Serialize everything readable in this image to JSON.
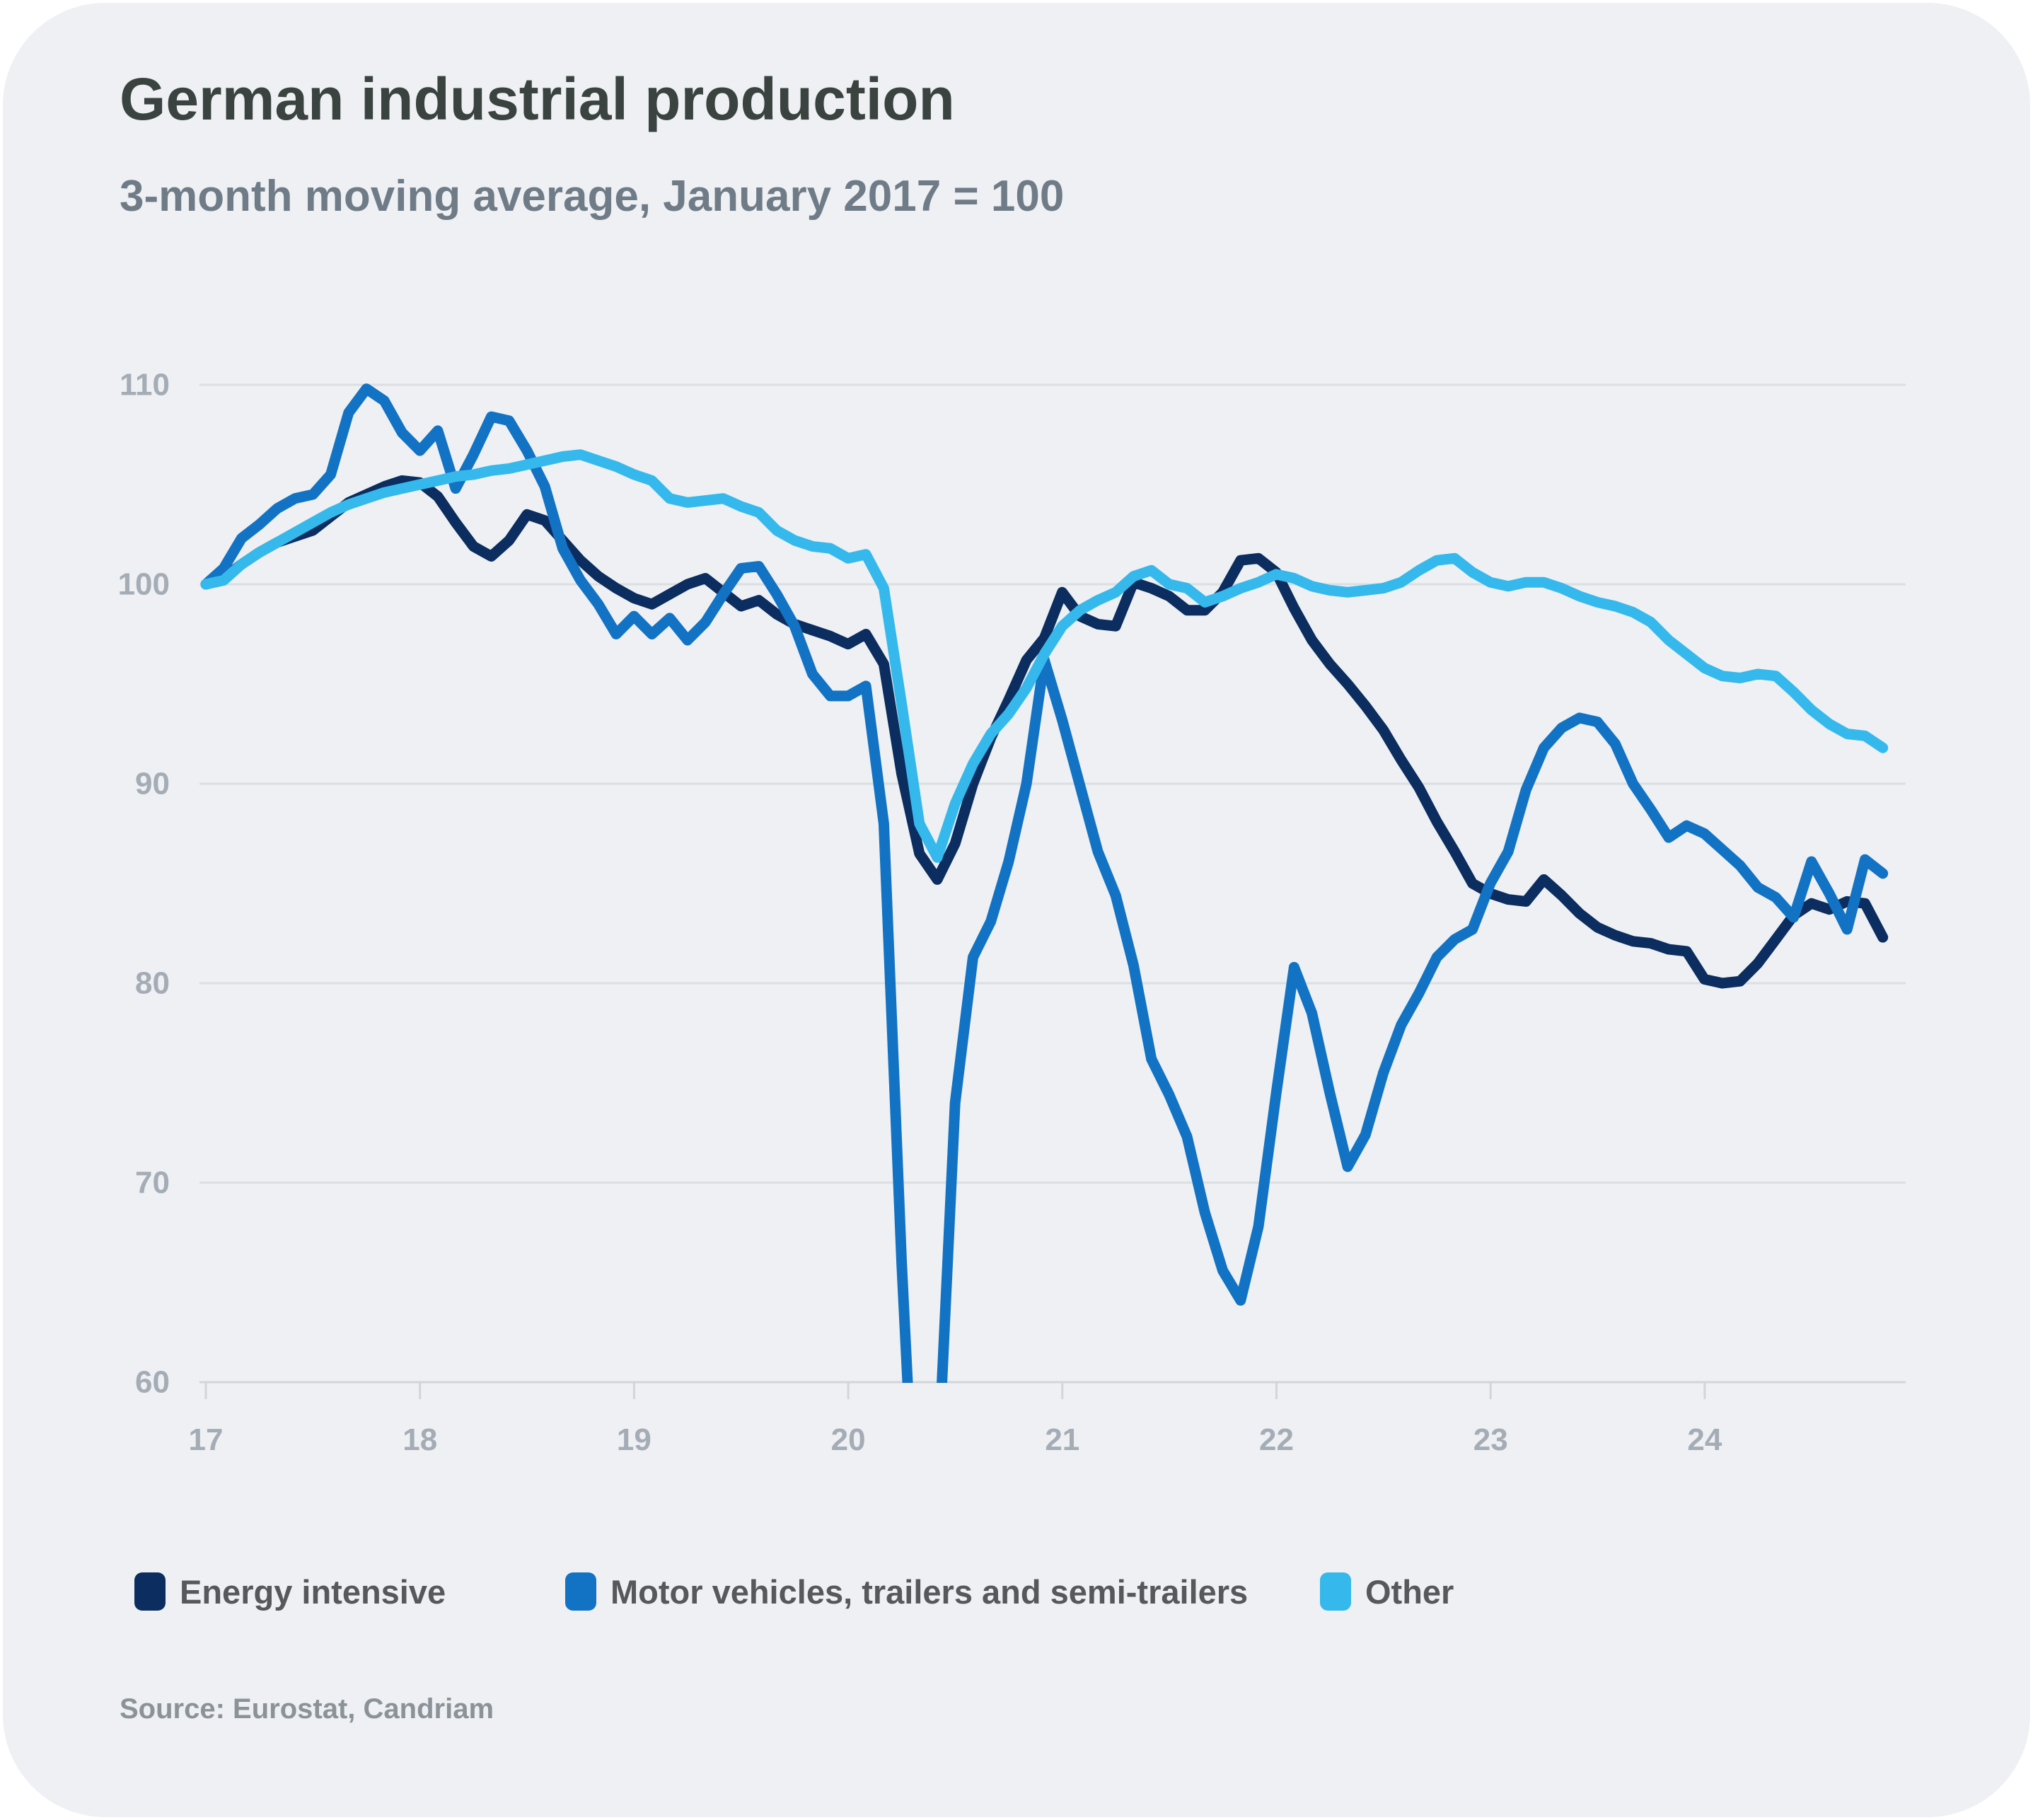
{
  "title": "German industrial production",
  "subtitle": "3-month moving average, January 2017 = 100",
  "source": "Source: Eurostat, Candriam",
  "colors": {
    "card_bg": "#eef0f3",
    "title_text": "#3a433f",
    "subtitle_text": "#6f7c88",
    "tick_text": "#a4acb5",
    "gridline": "#dcdfe2",
    "axis_line": "#d2d6d9",
    "legend_text": "#56585b",
    "source_text": "#8b9298"
  },
  "legend": {
    "items": [
      {
        "label": "Energy intensive",
        "color": "#0b2d5f"
      },
      {
        "label": "Motor vehicles, trailers and semi-trailers",
        "color": "#1273c4"
      },
      {
        "label": "Other",
        "color": "#35b9ec"
      }
    ]
  },
  "chart_data": {
    "type": "line",
    "title": "German industrial production",
    "subtitle": "3-month moving average, January 2017 = 100",
    "frequency": "monthly",
    "x_start": "2017-01",
    "x_end": "2024-11",
    "index_base": "January 2017 = 100",
    "ylim": [
      60,
      110
    ],
    "yticks": [
      110,
      100,
      90,
      80,
      70,
      60
    ],
    "xticks": [
      "17",
      "18",
      "19",
      "20",
      "21",
      "22",
      "23",
      "24"
    ],
    "grid": "horizontal",
    "legend_position": "bottom",
    "series": [
      {
        "name": "Energy intensive",
        "color": "#0b2d5f",
        "values": [
          100.0,
          100.3,
          101.0,
          101.6,
          102.1,
          102.4,
          102.7,
          103.4,
          104.1,
          104.5,
          104.9,
          105.2,
          105.1,
          104.4,
          103.1,
          101.9,
          101.4,
          102.2,
          103.5,
          103.2,
          102.2,
          101.2,
          100.4,
          99.8,
          99.3,
          99.0,
          99.5,
          100.0,
          100.3,
          99.6,
          98.9,
          99.2,
          98.5,
          98.0,
          97.7,
          97.4,
          97.0,
          97.5,
          96.0,
          90.5,
          86.5,
          85.2,
          87.0,
          90.0,
          92.3,
          94.2,
          96.2,
          97.3,
          99.6,
          98.4,
          98.0,
          97.9,
          100.1,
          99.8,
          99.4,
          98.7,
          98.7,
          99.6,
          101.2,
          101.3,
          100.6,
          98.8,
          97.2,
          96.0,
          95.0,
          93.9,
          92.7,
          91.2,
          89.8,
          88.1,
          86.6,
          85.0,
          84.5,
          84.2,
          84.1,
          85.2,
          84.4,
          83.5,
          82.8,
          82.4,
          82.1,
          82.0,
          81.7,
          81.6,
          80.2,
          80.0,
          80.1,
          81.0,
          82.2,
          83.4,
          84.0,
          83.7,
          84.1,
          84.0,
          82.3
        ]
      },
      {
        "name": "Motor vehicles, trailers and semi-trailers",
        "color": "#1273c4",
        "values": [
          100.0,
          100.8,
          102.3,
          103.0,
          103.8,
          104.3,
          104.5,
          105.5,
          108.6,
          109.8,
          109.2,
          107.6,
          106.7,
          107.7,
          104.8,
          106.5,
          108.4,
          108.2,
          106.7,
          104.9,
          101.8,
          100.2,
          99.0,
          97.5,
          98.4,
          97.5,
          98.3,
          97.2,
          98.1,
          99.5,
          100.8,
          100.9,
          99.5,
          97.9,
          95.5,
          94.4,
          94.4,
          94.9,
          88.0,
          66.0,
          48.0,
          55.0,
          74.0,
          81.3,
          83.1,
          86.1,
          90.0,
          96.2,
          93.2,
          89.9,
          86.6,
          84.4,
          80.9,
          76.2,
          74.4,
          72.3,
          68.5,
          65.6,
          64.1,
          67.8,
          74.5,
          80.8,
          78.5,
          74.5,
          70.8,
          72.4,
          75.5,
          77.9,
          79.5,
          81.3,
          82.2,
          82.7,
          85.0,
          86.6,
          89.7,
          91.8,
          92.8,
          93.3,
          93.1,
          92.0,
          90.0,
          88.7,
          87.3,
          87.9,
          87.5,
          86.7,
          85.9,
          84.8,
          84.3,
          83.3,
          86.1,
          84.5,
          82.7,
          86.2,
          85.5
        ]
      },
      {
        "name": "Other",
        "color": "#35b9ec",
        "values": [
          100.0,
          100.2,
          101.0,
          101.6,
          102.1,
          102.6,
          103.1,
          103.6,
          104.0,
          104.3,
          104.6,
          104.8,
          105.0,
          105.2,
          105.4,
          105.5,
          105.7,
          105.8,
          106.0,
          106.2,
          106.4,
          106.5,
          106.2,
          105.9,
          105.5,
          105.2,
          104.3,
          104.1,
          104.2,
          104.3,
          103.9,
          103.6,
          102.7,
          102.2,
          101.9,
          101.8,
          101.3,
          101.5,
          99.8,
          94.0,
          88.0,
          86.3,
          89.0,
          91.0,
          92.5,
          93.5,
          94.8,
          96.5,
          97.9,
          98.7,
          99.2,
          99.6,
          100.4,
          100.7,
          100.0,
          99.8,
          99.1,
          99.4,
          99.8,
          100.1,
          100.5,
          100.3,
          99.9,
          99.7,
          99.6,
          99.7,
          99.8,
          100.1,
          100.7,
          101.2,
          101.3,
          100.6,
          100.1,
          99.9,
          100.1,
          100.1,
          99.8,
          99.4,
          99.1,
          98.9,
          98.6,
          98.1,
          97.2,
          96.5,
          95.8,
          95.4,
          95.3,
          95.5,
          95.4,
          94.6,
          93.7,
          93.0,
          92.5,
          92.4,
          91.8
        ]
      }
    ]
  }
}
